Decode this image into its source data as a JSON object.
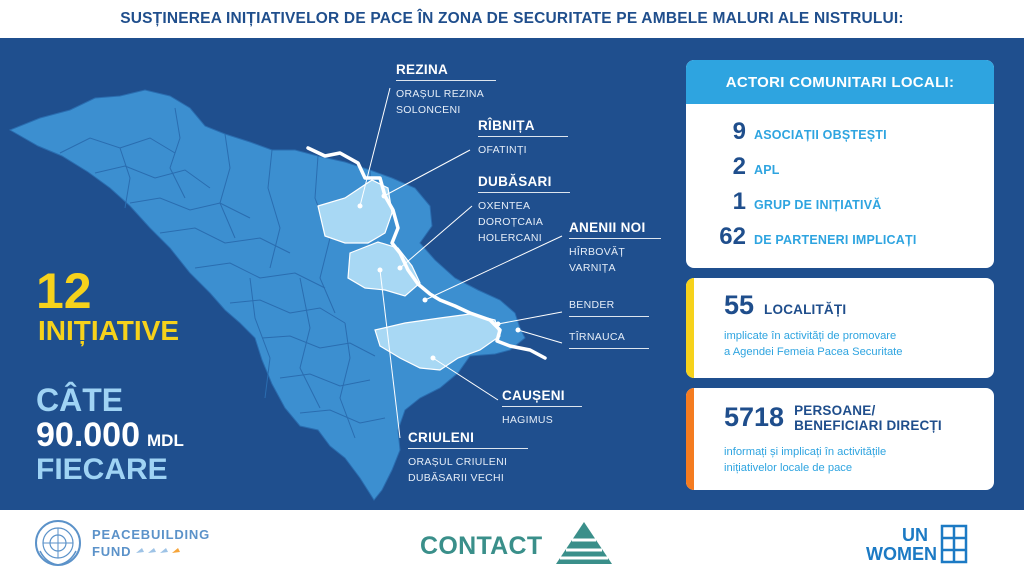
{
  "header": {
    "title": "SUSȚINEREA INIȚIATIVELOR DE PACE ÎN ZONA DE SECURITATE PE AMBELE MALURI ALE NISTRULUI:"
  },
  "summary": {
    "initiatives_count": "12",
    "initiatives_label": "INIȚIATIVE",
    "cate_label": "CÂTE",
    "amount": "90.000",
    "currency": "MDL",
    "fiecare_label": "FIECARE"
  },
  "districts": {
    "rezina": {
      "name": "REZINA",
      "places": [
        "ORAȘUL REZINA",
        "SOLONCENI"
      ]
    },
    "ribnita": {
      "name": "RÎBNIȚA",
      "places": [
        "OFATINȚI"
      ]
    },
    "dubasari": {
      "name": "DUBĂSARI",
      "places": [
        "OXENTEA",
        "DOROȚCAIA",
        "HOLERCANI"
      ]
    },
    "anenii_noi": {
      "name": "ANENII NOI",
      "places": [
        "HÎRBOVĂȚ",
        "VARNIȚA"
      ]
    },
    "bender": {
      "label": "BENDER"
    },
    "tirnauca": {
      "label": "TÎRNAUCA"
    },
    "causeni": {
      "name": "CAUȘENI",
      "places": [
        "HAGIMUS"
      ]
    },
    "criuleni": {
      "name": "CRIULENI",
      "places": [
        "ORAȘUL CRIULENI",
        "DUBĂSARII VECHI"
      ]
    }
  },
  "actors_card": {
    "title": "ACTORI COMUNITARI LOCALI:",
    "rows": [
      {
        "num": "9",
        "label": "ASOCIAȚII OBȘTEȘTI"
      },
      {
        "num": "2",
        "label": "APL"
      },
      {
        "num": "1",
        "label": "GRUP DE INIȚIATIVĂ"
      },
      {
        "num": "62",
        "label": "DE PARTENERI IMPLICAȚI"
      }
    ]
  },
  "localities_card": {
    "num": "55",
    "label": "LOCALITĂȚI",
    "desc_line1": "implicate în activități de promovare",
    "desc_line2": "a Agendei Femeia Pacea Securitate",
    "accent_color": "#f6d21b"
  },
  "persons_card": {
    "num": "5718",
    "label_line1": "PERSOANE/",
    "label_line2": "BENEFICIARI DIRECȚI",
    "desc_line1": "informați și implicați în activitățile",
    "desc_line2": "inițiativelor locale de pace",
    "accent_color": "#f47b20"
  },
  "footer": {
    "pbf_line1": "PEACEBUILDING",
    "pbf_line2": "FUND",
    "contact": "CONTACT",
    "unwomen_line1": "UN",
    "unwomen_line2": "WOMEN"
  },
  "colors": {
    "background": "#1f4f8e",
    "map_fill": "#3c8fd0",
    "highlight_fill": "#a8d8f4",
    "accent_blue": "#2ea4e0",
    "yellow": "#f6d21b",
    "dark_blue": "#1f4e8c"
  }
}
